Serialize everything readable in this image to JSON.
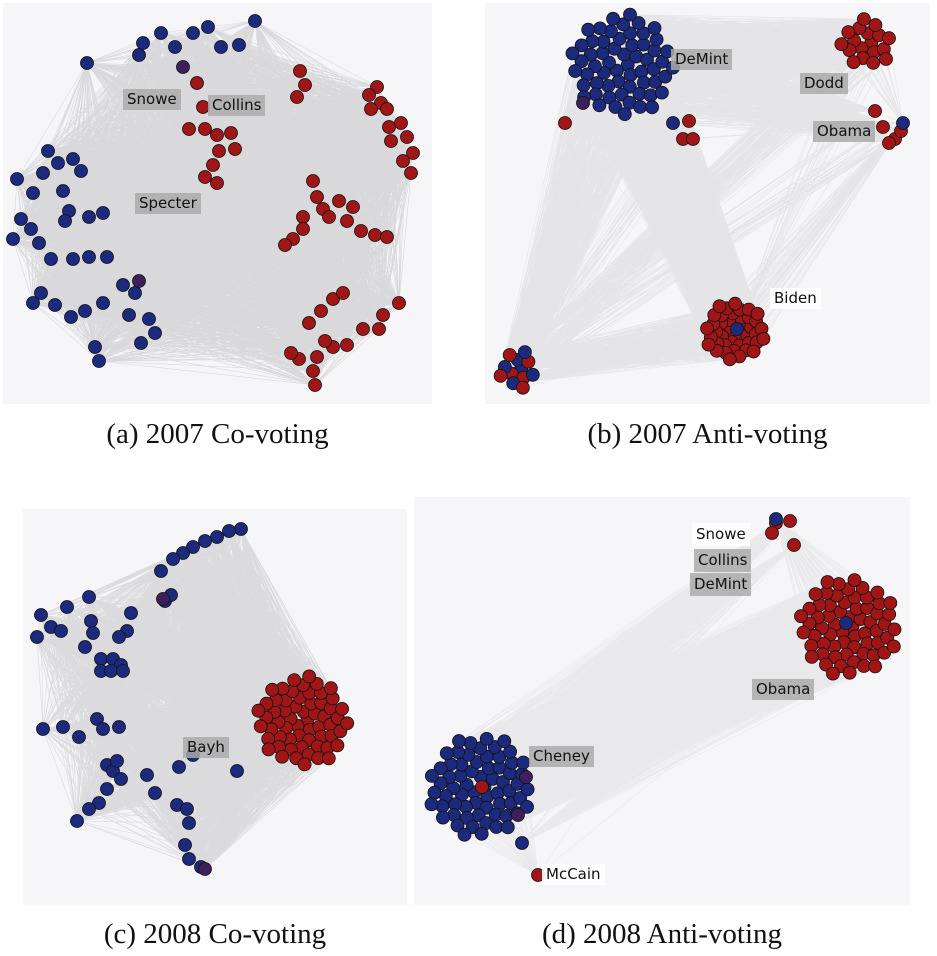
{
  "colors": {
    "democrat": "#a01515",
    "republican": "#1b2a7c",
    "independent": "#3e1f5c",
    "edge": "#2a2a2a",
    "panel_bg": "#f6f6f8"
  },
  "panels": [
    {
      "id": "a",
      "caption": "(a)  2007 Co-voting",
      "labels": {
        "snowe": "Snowe",
        "collins": "Collins",
        "specter": "Specter"
      }
    },
    {
      "id": "b",
      "caption": "(b)  2007 Anti-voting",
      "labels": {
        "demint": "DeMint",
        "dodd": "Dodd",
        "obama": "Obama",
        "biden": "Biden"
      }
    },
    {
      "id": "c",
      "caption": "(c)  2008 Co-voting",
      "labels": {
        "bayh": "Bayh"
      }
    },
    {
      "id": "d",
      "caption": "(d)  2008 Anti-voting",
      "labels": {
        "snowe": "Snowe",
        "collins": "Collins",
        "demint": "DeMint",
        "obama": "Obama",
        "cheney": "Cheney",
        "mccain": "McCain"
      }
    }
  ]
}
